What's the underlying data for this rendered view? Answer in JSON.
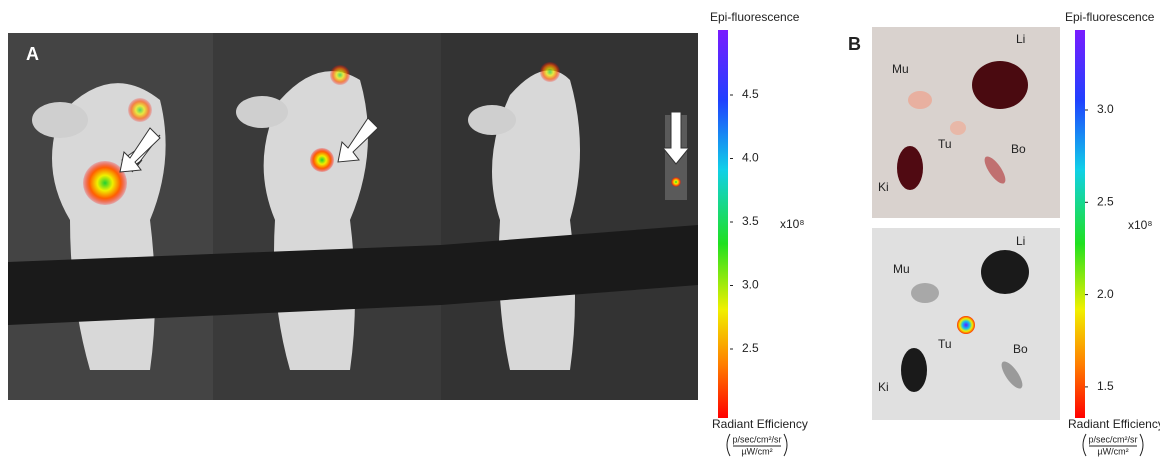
{
  "panel_a": {
    "label": "A",
    "scale": {
      "title": "Epi-fluorescence",
      "ticks": [
        "4.5",
        "4.0",
        "3.5",
        "3.0",
        "2.5"
      ],
      "multiplier": "x10⁸",
      "unit_title": "Radiant Efficiency",
      "unit_numerator": "p/sec/cm²/sr",
      "unit_denominator": "µW/cm²"
    }
  },
  "panel_b": {
    "label": "B",
    "photo_labels": [
      "Mu",
      "Li",
      "Tu",
      "Bo",
      "Ki"
    ],
    "fluorescence_labels": [
      "Mu",
      "Li",
      "Tu",
      "Bo",
      "Ki"
    ],
    "scale": {
      "title": "Epi-fluorescence",
      "ticks": [
        "3.0",
        "2.5",
        "2.0",
        "1.5"
      ],
      "multiplier": "x10⁸",
      "unit_title": "Radiant Efficiency",
      "unit_numerator": "p/sec/cm²/sr",
      "unit_denominator": "µW/cm²"
    }
  }
}
